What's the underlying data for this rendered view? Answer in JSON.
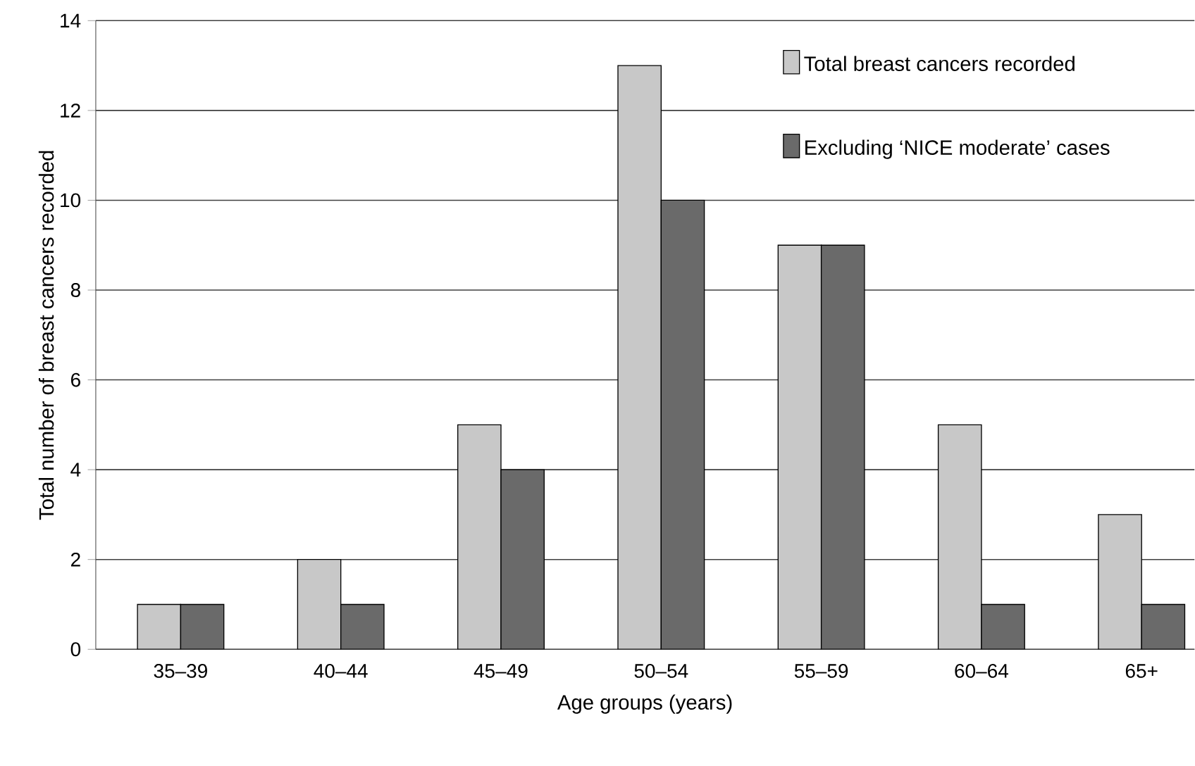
{
  "chart_data": {
    "type": "bar",
    "xlabel": "Age groups (years)",
    "ylabel": "Total number of breast cancers recorded",
    "categories": [
      "35–39",
      "40–44",
      "45–49",
      "50–54",
      "55–59",
      "60–64",
      "65+"
    ],
    "series": [
      {
        "name": "Total breast cancers recorded",
        "color": "#c8c8c8",
        "values": [
          1,
          2,
          5,
          13,
          9,
          5,
          3
        ]
      },
      {
        "name": "Excluding ‘NICE moderate’ cases",
        "color": "#6a6a6a",
        "values": [
          1,
          1,
          4,
          10,
          9,
          1,
          1
        ]
      }
    ],
    "ylim": [
      0,
      14
    ],
    "yticks": [
      0,
      2,
      4,
      6,
      8,
      10,
      12,
      14
    ],
    "grid": "y",
    "legend": "top right"
  }
}
